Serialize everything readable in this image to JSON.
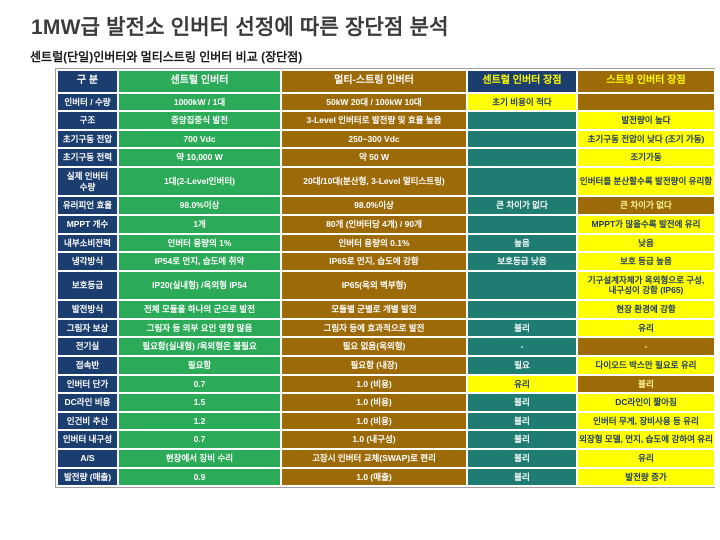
{
  "title": "1MW급 발전소 인버터 선정에 따른 장단점 분석",
  "subtitle": "센트럴(단일)인버터와  멀티스트링 인버터 비교 (장단점)",
  "colors": {
    "navy": "#1c3e6e",
    "green": "#2bab58",
    "brown": "#9c6a08",
    "teal": "#1e7c72",
    "yellow": "#ffff00",
    "ink_on_yellow": "#1f3864",
    "pale_on_brown": "#fcf6a0",
    "title_ink": "#3b3b3b",
    "text_ink": "#1a1a1a"
  },
  "table": {
    "headers": [
      "구 분",
      "센트럴 인버터",
      "멀티-스트링 인버터",
      "센트럴 인버터 장점",
      "스트링 인버터 장점"
    ],
    "rows": [
      {
        "label": "인버터 / 수량",
        "central": "1000kW / 1대",
        "multi": "50kW 20대 / 100kW 10대",
        "central_adv": {
          "text": "초기 비용이 적다",
          "bg": "yellow"
        },
        "string_adv": {
          "text": "",
          "bg": "brown"
        }
      },
      {
        "label": "구조",
        "central": "중앙집중식 발전",
        "multi": "3-Level 인버터로 발전량 및 효율 높음",
        "central_adv": {
          "text": "",
          "bg": "teal"
        },
        "string_adv": {
          "text": "발전량이 높다",
          "bg": "yellow"
        }
      },
      {
        "label": "초기구동 전압",
        "central": "700 Vdc",
        "multi": "250~300 Vdc",
        "central_adv": {
          "text": "",
          "bg": "teal"
        },
        "string_adv": {
          "text": "초기구동 전압이 낮다 (조기 가동)",
          "bg": "yellow"
        }
      },
      {
        "label": "초기구동 전력",
        "central": "약 10,000 W",
        "multi": "약 50 W",
        "central_adv": {
          "text": "",
          "bg": "teal"
        },
        "string_adv": {
          "text": "조기가동",
          "bg": "yellow"
        }
      },
      {
        "label": "실제 인버터 수량",
        "central": "1대(2-Level인버터)",
        "multi": "20대/10대(분산형, 3-Level 멀티스트링)",
        "central_adv": {
          "text": "",
          "bg": "teal"
        },
        "string_adv": {
          "text": "인버터를 분산할수록 발전량이 유리함",
          "bg": "yellow"
        }
      },
      {
        "label": "유러피언 효율",
        "central": "98.0%이상",
        "multi": "98.0%이상",
        "central_adv": {
          "text": "큰 차이가 없다",
          "bg": "teal"
        },
        "string_adv": {
          "text": "큰 차이가 없다",
          "bg": "brown"
        }
      },
      {
        "label": "MPPT 개수",
        "central": "1개",
        "multi": "80개 (인버터당 4개) / 90개",
        "central_adv": {
          "text": "",
          "bg": "teal"
        },
        "string_adv": {
          "text": "MPPT가 많을수록 발전에 유리",
          "bg": "yellow"
        }
      },
      {
        "label": "내부소비전력",
        "central": "인버터 용량의 1%",
        "multi": "인버터 용량의 0.1%",
        "central_adv": {
          "text": "높음",
          "bg": "teal"
        },
        "string_adv": {
          "text": "낮음",
          "bg": "yellow"
        }
      },
      {
        "label": "냉각방식",
        "central": "IP54로 먼지, 습도에 취약",
        "multi": "IP65로 먼지, 습도에 강함",
        "central_adv": {
          "text": "보호등급 낮음",
          "bg": "teal"
        },
        "string_adv": {
          "text": "보호 등급 높음",
          "bg": "yellow"
        }
      },
      {
        "label": "보호등급",
        "central": "IP20(실내형) /옥외형 IP54",
        "multi": "IP65(옥외 벽부형)",
        "central_adv": {
          "text": "",
          "bg": "teal"
        },
        "string_adv": {
          "text": "기구설계자체가 옥외형으로 구성, 내구성이 강함 (IP65)",
          "bg": "yellow"
        }
      },
      {
        "label": "발전방식",
        "central": "전체 모듈을 하나의 군으로 발전",
        "multi": "모듈별 군별로 개별 발전",
        "central_adv": {
          "text": "",
          "bg": "teal"
        },
        "string_adv": {
          "text": "현장 환경에 강함",
          "bg": "yellow"
        }
      },
      {
        "label": "그림자 보상",
        "central": "그림자 등 외부 요인 영향 많음",
        "multi": "그림자 등에 효과적으로 발전",
        "central_adv": {
          "text": "불리",
          "bg": "teal"
        },
        "string_adv": {
          "text": "유리",
          "bg": "yellow"
        }
      },
      {
        "label": "전기실",
        "central": "필요함(실내형) /옥외형은 불필요",
        "multi": "필요 없음(옥외형)",
        "central_adv": {
          "text": "-",
          "bg": "teal"
        },
        "string_adv": {
          "text": "-",
          "bg": "brown"
        }
      },
      {
        "label": "접속반",
        "central": "필요함",
        "multi": "필요함 (내장)",
        "central_adv": {
          "text": "필요",
          "bg": "teal"
        },
        "string_adv": {
          "text": "다이오드 박스만 필요로 유리",
          "bg": "yellow"
        }
      },
      {
        "label": "인버터 단가",
        "central": "0.7",
        "multi": "1.0 (비용)",
        "central_adv": {
          "text": "유리",
          "bg": "yellow"
        },
        "string_adv": {
          "text": "불리",
          "bg": "brown"
        }
      },
      {
        "label": "DC라인 비용",
        "central": "1.5",
        "multi": "1.0 (비용)",
        "central_adv": {
          "text": "불리",
          "bg": "teal"
        },
        "string_adv": {
          "text": "DC라인이 짧아짐",
          "bg": "yellow"
        }
      },
      {
        "label": "인건비 추산",
        "central": "1.2",
        "multi": "1.0 (비용)",
        "central_adv": {
          "text": "불리",
          "bg": "teal"
        },
        "string_adv": {
          "text": "인버터 무게, 장비사용 등 유리",
          "bg": "yellow"
        }
      },
      {
        "label": "인버터 내구성",
        "central": "0.7",
        "multi": "1.0 (내구성)",
        "central_adv": {
          "text": "불리",
          "bg": "teal"
        },
        "string_adv": {
          "text": "외장형 모델, 먼지, 습도에 강하여 유리",
          "bg": "yellow"
        }
      },
      {
        "label": "A/S",
        "central": "현장에서 장비 수리",
        "multi": "고장시 인버터 교체(SWAP)로 편리",
        "central_adv": {
          "text": "불리",
          "bg": "teal"
        },
        "string_adv": {
          "text": "유리",
          "bg": "yellow"
        }
      },
      {
        "label": "발전량 (매출)",
        "central": "0.9",
        "multi": "1.0 (매출)",
        "central_adv": {
          "text": "불리",
          "bg": "teal"
        },
        "string_adv": {
          "text": "발전량 증가",
          "bg": "yellow"
        }
      }
    ]
  }
}
